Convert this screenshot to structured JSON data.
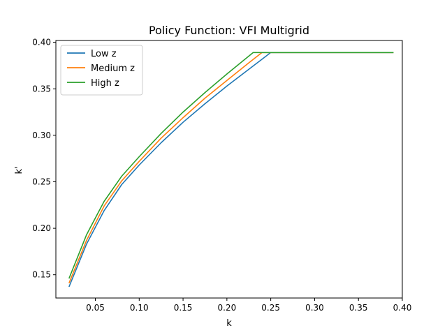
{
  "chart_data": {
    "type": "line",
    "title": "Policy Function: VFI Multigrid",
    "xlabel": "k",
    "ylabel": "k'",
    "xlim": [
      0.005,
      0.4
    ],
    "ylim": [
      0.125,
      0.402
    ],
    "xticks": [
      0.05,
      0.1,
      0.15,
      0.2,
      0.25,
      0.3,
      0.35,
      0.4
    ],
    "xtick_labels": [
      "0.05",
      "0.10",
      "0.15",
      "0.20",
      "0.25",
      "0.30",
      "0.35",
      "0.40"
    ],
    "yticks": [
      0.15,
      0.2,
      0.25,
      0.3,
      0.35,
      0.4
    ],
    "ytick_labels": [
      "0.15",
      "0.20",
      "0.25",
      "0.30",
      "0.35",
      "0.40"
    ],
    "grid": false,
    "legend_position": "top-left",
    "series": [
      {
        "name": "Low z",
        "color": "#1f77b4",
        "x": [
          0.02,
          0.04,
          0.06,
          0.08,
          0.1,
          0.125,
          0.15,
          0.175,
          0.2,
          0.225,
          0.25,
          0.3,
          0.35,
          0.39
        ],
        "y": [
          0.137,
          0.183,
          0.219,
          0.247,
          0.268,
          0.292,
          0.314,
          0.334,
          0.353,
          0.371,
          0.389,
          0.389,
          0.389,
          0.389
        ]
      },
      {
        "name": "Medium z",
        "color": "#ff7f0e",
        "x": [
          0.02,
          0.04,
          0.06,
          0.08,
          0.1,
          0.125,
          0.15,
          0.175,
          0.2,
          0.225,
          0.24,
          0.3,
          0.35,
          0.39
        ],
        "y": [
          0.141,
          0.187,
          0.224,
          0.251,
          0.272,
          0.297,
          0.319,
          0.34,
          0.359,
          0.378,
          0.389,
          0.389,
          0.389,
          0.389
        ]
      },
      {
        "name": "High z",
        "color": "#2ca02c",
        "x": [
          0.02,
          0.04,
          0.06,
          0.08,
          0.1,
          0.125,
          0.15,
          0.175,
          0.2,
          0.23,
          0.3,
          0.35,
          0.39
        ],
        "y": [
          0.146,
          0.193,
          0.229,
          0.256,
          0.277,
          0.302,
          0.325,
          0.346,
          0.366,
          0.389,
          0.389,
          0.389,
          0.389
        ]
      }
    ]
  }
}
